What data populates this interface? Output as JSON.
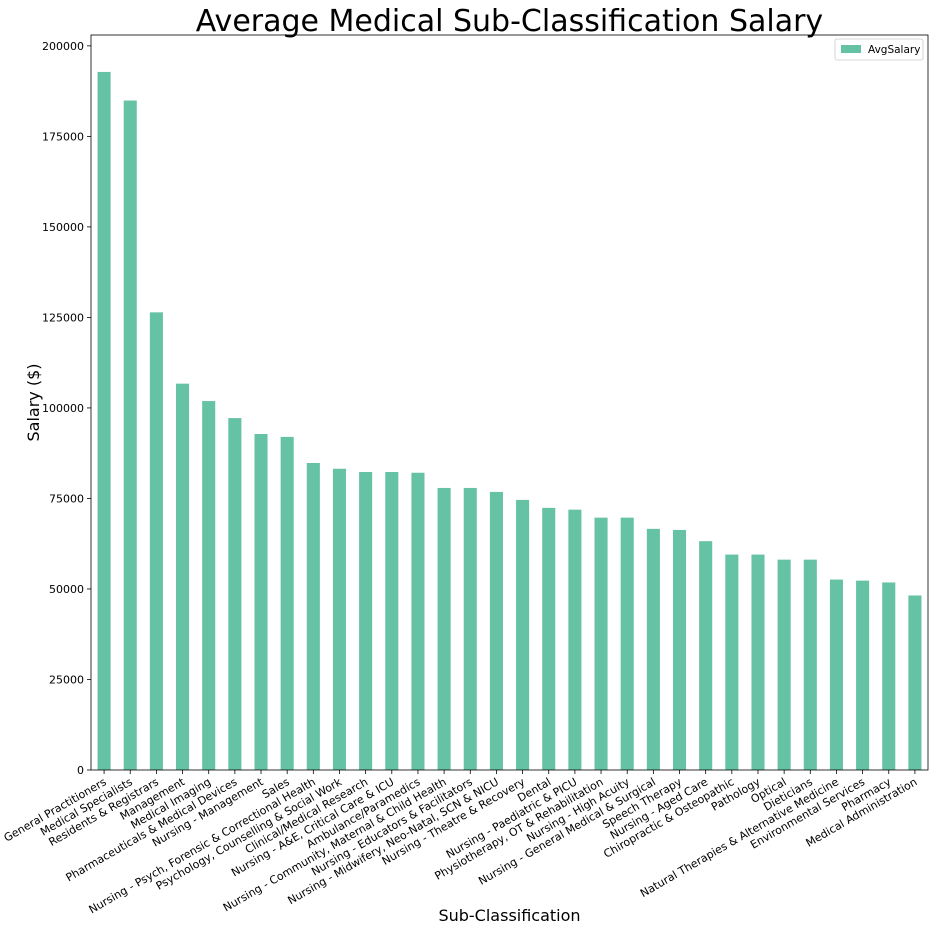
{
  "chart_data": {
    "type": "bar",
    "title": "Average Medical Sub-Classification Salary",
    "xlabel": "Sub-Classification",
    "ylabel": "Salary ($)",
    "ylim": [
      0,
      203000
    ],
    "yticks": [
      0,
      25000,
      50000,
      75000,
      100000,
      125000,
      150000,
      175000,
      200000
    ],
    "grid": false,
    "legend_position": "top-right",
    "bar_color": "#66c2a5",
    "categories": [
      "General Practitioners",
      "Medical Specialists",
      "Residents & Registrars",
      "Management",
      "Medical Imaging",
      "Pharmaceuticals & Medical Devices",
      "Nursing - Management",
      "Sales",
      "Nursing - Psych, Forensic & Correctional Health",
      "Psychology, Counselling & Social Work",
      "Clinical/Medical Research",
      "Nursing - A&E, Critical Care & ICU",
      "Ambulance/Paramedics",
      "Nursing - Community, Maternal & Child Health",
      "Nursing - Educators & Facilitators",
      "Nursing - Midwifery, Neo-Natal, SCN & NICU",
      "Nursing - Theatre & Recovery",
      "Dental",
      "Nursing - Paediatric & PICU",
      "Physiotherapy, OT & Rehabilitation",
      "Nursing - High Acuity",
      "Nursing - General Medical & Surgical",
      "Speech Therapy",
      "Nursing - Aged Care",
      "Chiropractic & Osteopathic",
      "Pathology",
      "Optical",
      "Dieticians",
      "Natural Therapies & Alternative Medicine",
      "Environmental Services",
      "Pharmacy",
      "Medical Administration"
    ],
    "series": [
      {
        "name": "AvgSalary",
        "values": [
          192800,
          184900,
          126400,
          106700,
          101900,
          97200,
          92800,
          92000,
          84800,
          83200,
          82300,
          82300,
          82100,
          77900,
          77900,
          76800,
          74600,
          72400,
          71900,
          69700,
          69700,
          66600,
          66300,
          63200,
          59500,
          59500,
          58100,
          58100,
          52600,
          52300,
          51800,
          48200
        ]
      }
    ]
  }
}
